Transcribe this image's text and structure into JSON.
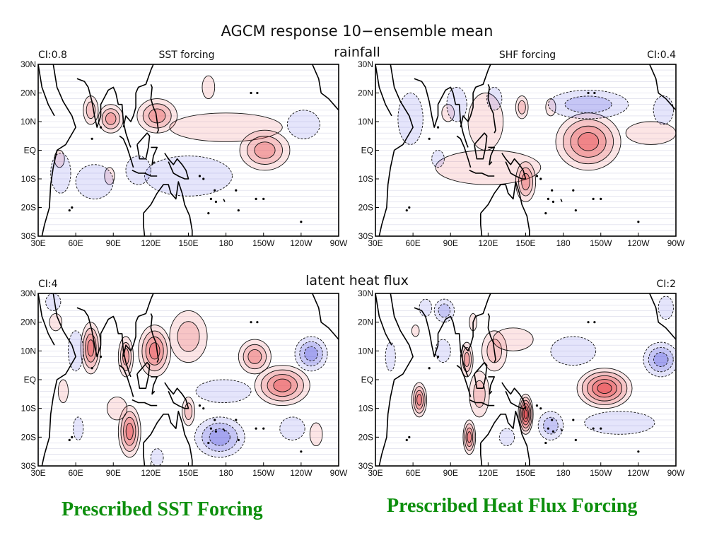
{
  "figure": {
    "title": "AGCM response 10−ensemble mean",
    "row_titles": [
      "rainfall",
      "latent heat flux"
    ]
  },
  "captions": {
    "left": "Prescribed SST Forcing",
    "right": "Prescribed Heat Flux Forcing",
    "color": "#0d8f0d"
  },
  "colors": {
    "positive": "#e8454a",
    "negative": "#4a4ae0",
    "coast": "#000000",
    "grid": "#d8d8e8"
  },
  "chart_data": [
    {
      "type": "heatmap",
      "variable": "rainfall",
      "forcing_label": "SST forcing",
      "contour_interval": "CI:0.8",
      "x_ticks": [
        "30E",
        "60E",
        "90E",
        "120E",
        "150E",
        "180",
        "150W",
        "120W",
        "90W"
      ],
      "y_ticks": [
        "30N",
        "20N",
        "10N",
        "EQ",
        "10S",
        "20S",
        "30S"
      ],
      "xlim": [
        30,
        270
      ],
      "ylim": [
        -30,
        30
      ],
      "features": [
        {
          "sign": "+",
          "lon": 72,
          "lat": 14,
          "rx": 6,
          "ry": 5,
          "levels": 2
        },
        {
          "sign": "+",
          "lon": 88,
          "lat": 11,
          "rx": 10,
          "ry": 5,
          "levels": 3
        },
        {
          "sign": "+",
          "lon": 125,
          "lat": 12,
          "rx": 16,
          "ry": 6,
          "levels": 3
        },
        {
          "sign": "+",
          "lon": 180,
          "lat": 8,
          "rx": 45,
          "ry": 5,
          "levels": 1
        },
        {
          "sign": "+",
          "lon": 211,
          "lat": 0,
          "rx": 20,
          "ry": 7,
          "levels": 3
        },
        {
          "sign": "+",
          "lon": 166,
          "lat": 22,
          "rx": 5,
          "ry": 4,
          "levels": 1
        },
        {
          "sign": "+",
          "lon": 47,
          "lat": -3,
          "rx": 4,
          "ry": 3,
          "levels": 1
        },
        {
          "sign": "+",
          "lon": 87,
          "lat": -9,
          "rx": 4,
          "ry": 3,
          "levels": 1
        },
        {
          "sign": "-",
          "lon": 48,
          "lat": -8,
          "rx": 8,
          "ry": 7,
          "levels": 1
        },
        {
          "sign": "-",
          "lon": 75,
          "lat": -11,
          "rx": 15,
          "ry": 6,
          "levels": 1
        },
        {
          "sign": "-",
          "lon": 150,
          "lat": -9,
          "rx": 35,
          "ry": 7,
          "levels": 1
        },
        {
          "sign": "-",
          "lon": 242,
          "lat": 9,
          "rx": 13,
          "ry": 5,
          "levels": 1
        },
        {
          "sign": "-",
          "lon": 110,
          "lat": -7,
          "rx": 10,
          "ry": 5,
          "levels": 1
        }
      ]
    },
    {
      "type": "heatmap",
      "variable": "rainfall",
      "forcing_label": "SHF forcing",
      "contour_interval": "CI:0.4",
      "x_ticks": [
        "30E",
        "60E",
        "90E",
        "120E",
        "150E",
        "180",
        "150W",
        "120W",
        "90W"
      ],
      "y_ticks": [
        "30N",
        "20N",
        "10N",
        "EQ",
        "10S",
        "20S",
        "30S"
      ],
      "xlim": [
        30,
        270
      ],
      "ylim": [
        -30,
        30
      ],
      "features": [
        {
          "sign": "+",
          "lon": 200,
          "lat": 3,
          "rx": 26,
          "ry": 10,
          "levels": 4
        },
        {
          "sign": "+",
          "lon": 120,
          "lat": -6,
          "rx": 42,
          "ry": 6,
          "levels": 1
        },
        {
          "sign": "+",
          "lon": 150,
          "lat": -11,
          "rx": 8,
          "ry": 7,
          "levels": 3
        },
        {
          "sign": "+",
          "lon": 147,
          "lat": 15,
          "rx": 5,
          "ry": 4,
          "levels": 2
        },
        {
          "sign": "+",
          "lon": 170,
          "lat": 15,
          "rx": 4,
          "ry": 3,
          "levels": 1
        },
        {
          "sign": "+",
          "lon": 118,
          "lat": 10,
          "rx": 14,
          "ry": 10,
          "levels": 1
        },
        {
          "sign": "+",
          "lon": 250,
          "lat": 6,
          "rx": 20,
          "ry": 4,
          "levels": 1
        },
        {
          "sign": "+",
          "lon": 88,
          "lat": 13,
          "rx": 5,
          "ry": 3,
          "levels": 1
        },
        {
          "sign": "-",
          "lon": 200,
          "lat": 16,
          "rx": 32,
          "ry": 5,
          "levels": 2
        },
        {
          "sign": "-",
          "lon": 58,
          "lat": 11,
          "rx": 10,
          "ry": 9,
          "levels": 1
        },
        {
          "sign": "-",
          "lon": 95,
          "lat": 16,
          "rx": 8,
          "ry": 6,
          "levels": 1
        },
        {
          "sign": "-",
          "lon": 260,
          "lat": 14,
          "rx": 8,
          "ry": 5,
          "levels": 1
        },
        {
          "sign": "-",
          "lon": 80,
          "lat": -3,
          "rx": 5,
          "ry": 3,
          "levels": 1
        },
        {
          "sign": "-",
          "lon": 125,
          "lat": 18,
          "rx": 6,
          "ry": 4,
          "levels": 1
        }
      ]
    },
    {
      "type": "heatmap",
      "variable": "latent heat flux",
      "forcing_label": "",
      "contour_interval": "CI:4",
      "x_ticks": [
        "30E",
        "60E",
        "90E",
        "120E",
        "150E",
        "180",
        "150W",
        "120W",
        "90W"
      ],
      "y_ticks": [
        "30N",
        "20N",
        "10N",
        "EQ",
        "10S",
        "20S",
        "30S"
      ],
      "xlim": [
        30,
        270
      ],
      "ylim": [
        -30,
        30
      ],
      "features": [
        {
          "sign": "+",
          "lon": 72,
          "lat": 11,
          "rx": 8,
          "ry": 9,
          "levels": 4
        },
        {
          "sign": "+",
          "lon": 100,
          "lat": 8,
          "rx": 6,
          "ry": 7,
          "levels": 3
        },
        {
          "sign": "+",
          "lon": 123,
          "lat": 10,
          "rx": 13,
          "ry": 9,
          "levels": 4
        },
        {
          "sign": "+",
          "lon": 150,
          "lat": 15,
          "rx": 15,
          "ry": 9,
          "levels": 2
        },
        {
          "sign": "+",
          "lon": 203,
          "lat": 8,
          "rx": 13,
          "ry": 6,
          "levels": 3
        },
        {
          "sign": "+",
          "lon": 225,
          "lat": -2,
          "rx": 22,
          "ry": 7,
          "levels": 4
        },
        {
          "sign": "+",
          "lon": 103,
          "lat": -18,
          "rx": 9,
          "ry": 9,
          "levels": 4
        },
        {
          "sign": "+",
          "lon": 93,
          "lat": -10,
          "rx": 8,
          "ry": 4,
          "levels": 1
        },
        {
          "sign": "+",
          "lon": 150,
          "lat": -11,
          "rx": 5,
          "ry": 5,
          "levels": 2
        },
        {
          "sign": "+",
          "lon": 50,
          "lat": -4,
          "rx": 4,
          "ry": 4,
          "levels": 1
        },
        {
          "sign": "+",
          "lon": 252,
          "lat": -19,
          "rx": 5,
          "ry": 4,
          "levels": 1
        },
        {
          "sign": "+",
          "lon": 44,
          "lat": 20,
          "rx": 5,
          "ry": 3,
          "levels": 1
        },
        {
          "sign": "-",
          "lon": 248,
          "lat": 9,
          "rx": 13,
          "ry": 6,
          "levels": 3
        },
        {
          "sign": "-",
          "lon": 175,
          "lat": -20,
          "rx": 20,
          "ry": 7,
          "levels": 3
        },
        {
          "sign": "-",
          "lon": 60,
          "lat": 10,
          "rx": 6,
          "ry": 7,
          "levels": 1
        },
        {
          "sign": "-",
          "lon": 178,
          "lat": -4,
          "rx": 22,
          "ry": 4,
          "levels": 1
        },
        {
          "sign": "-",
          "lon": 233,
          "lat": -17,
          "rx": 10,
          "ry": 4,
          "levels": 1
        },
        {
          "sign": "-",
          "lon": 62,
          "lat": -17,
          "rx": 4,
          "ry": 4,
          "levels": 1
        },
        {
          "sign": "-",
          "lon": 42,
          "lat": 27,
          "rx": 6,
          "ry": 3,
          "levels": 1
        },
        {
          "sign": "-",
          "lon": 125,
          "lat": -27,
          "rx": 5,
          "ry": 3,
          "levels": 1
        }
      ]
    },
    {
      "type": "heatmap",
      "variable": "latent heat flux",
      "forcing_label": "",
      "contour_interval": "CI:2",
      "x_ticks": [
        "30E",
        "60E",
        "90E",
        "120E",
        "150E",
        "180",
        "150W",
        "120W",
        "90W"
      ],
      "y_ticks": [
        "30N",
        "20N",
        "10N",
        "EQ",
        "10S",
        "20S",
        "30S"
      ],
      "xlim": [
        30,
        270
      ],
      "ylim": [
        -30,
        30
      ],
      "features": [
        {
          "sign": "+",
          "lon": 213,
          "lat": -3,
          "rx": 22,
          "ry": 7,
          "levels": 5
        },
        {
          "sign": "+",
          "lon": 150,
          "lat": -12,
          "rx": 6,
          "ry": 7,
          "levels": 6
        },
        {
          "sign": "+",
          "lon": 105,
          "lat": -20,
          "rx": 5,
          "ry": 6,
          "levels": 4
        },
        {
          "sign": "+",
          "lon": 65,
          "lat": -7,
          "rx": 6,
          "ry": 6,
          "levels": 4
        },
        {
          "sign": "+",
          "lon": 103,
          "lat": 7,
          "rx": 5,
          "ry": 6,
          "levels": 3
        },
        {
          "sign": "+",
          "lon": 125,
          "lat": 10,
          "rx": 10,
          "ry": 7,
          "levels": 2
        },
        {
          "sign": "+",
          "lon": 140,
          "lat": 14,
          "rx": 16,
          "ry": 4,
          "levels": 1
        },
        {
          "sign": "+",
          "lon": 113,
          "lat": -5,
          "rx": 8,
          "ry": 8,
          "levels": 2
        },
        {
          "sign": "+",
          "lon": 62,
          "lat": 17,
          "rx": 3,
          "ry": 2,
          "levels": 1
        },
        {
          "sign": "+",
          "lon": 108,
          "lat": 20,
          "rx": 3,
          "ry": 3,
          "levels": 1
        },
        {
          "sign": "-",
          "lon": 258,
          "lat": 7,
          "rx": 14,
          "ry": 6,
          "levels": 3
        },
        {
          "sign": "-",
          "lon": 225,
          "lat": -15,
          "rx": 28,
          "ry": 4,
          "levels": 1
        },
        {
          "sign": "-",
          "lon": 170,
          "lat": -16,
          "rx": 10,
          "ry": 5,
          "levels": 2
        },
        {
          "sign": "-",
          "lon": 188,
          "lat": 10,
          "rx": 18,
          "ry": 5,
          "levels": 1
        },
        {
          "sign": "-",
          "lon": 85,
          "lat": 24,
          "rx": 8,
          "ry": 4,
          "levels": 2
        },
        {
          "sign": "-",
          "lon": 84,
          "lat": 10,
          "rx": 6,
          "ry": 4,
          "levels": 1
        },
        {
          "sign": "-",
          "lon": 42,
          "lat": 8,
          "rx": 4,
          "ry": 5,
          "levels": 1
        },
        {
          "sign": "-",
          "lon": 70,
          "lat": 25,
          "rx": 5,
          "ry": 3,
          "levels": 1
        },
        {
          "sign": "-",
          "lon": 262,
          "lat": 25,
          "rx": 6,
          "ry": 4,
          "levels": 1
        },
        {
          "sign": "-",
          "lon": 135,
          "lat": -20,
          "rx": 6,
          "ry": 3,
          "levels": 1
        }
      ]
    }
  ]
}
